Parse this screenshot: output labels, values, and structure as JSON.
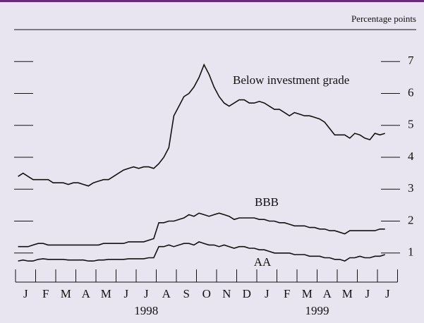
{
  "chart_data": {
    "type": "line",
    "unit_label": "Percentage points",
    "categories": [
      "J",
      null,
      null,
      null,
      "F",
      null,
      null,
      null,
      "M",
      null,
      null,
      null,
      "A",
      null,
      null,
      null,
      "M",
      null,
      null,
      null,
      "J",
      null,
      null,
      null,
      "J",
      null,
      null,
      null,
      "A",
      null,
      null,
      null,
      "S",
      null,
      null,
      null,
      "O",
      null,
      null,
      null,
      "N",
      null,
      null,
      null,
      "D",
      null,
      null,
      null,
      "J",
      null,
      null,
      null,
      "F",
      null,
      null,
      null,
      "M",
      null,
      null,
      null,
      "A",
      null,
      null,
      null,
      "M",
      null,
      null,
      null,
      "J",
      null,
      null,
      null,
      "J",
      null
    ],
    "years": [
      "1998",
      "1999"
    ],
    "series": [
      {
        "name": "Below investment grade",
        "color": "#111111",
        "values": [
          3.4,
          3.5,
          3.4,
          3.3,
          3.3,
          3.3,
          3.3,
          3.2,
          3.2,
          3.2,
          3.15,
          3.2,
          3.2,
          3.15,
          3.1,
          3.2,
          3.25,
          3.3,
          3.3,
          3.4,
          3.5,
          3.6,
          3.65,
          3.7,
          3.65,
          3.7,
          3.7,
          3.65,
          3.8,
          4.0,
          4.3,
          5.3,
          5.6,
          5.9,
          6.0,
          6.2,
          6.5,
          6.9,
          6.6,
          6.2,
          5.9,
          5.7,
          5.6,
          5.7,
          5.8,
          5.8,
          5.7,
          5.7,
          5.75,
          5.7,
          5.6,
          5.5,
          5.5,
          5.4,
          5.3,
          5.4,
          5.35,
          5.3,
          5.3,
          5.25,
          5.2,
          5.1,
          4.9,
          4.7,
          4.7,
          4.7,
          4.6,
          4.75,
          4.7,
          4.6,
          4.55,
          4.75,
          4.7,
          4.75
        ]
      },
      {
        "name": "BBB",
        "color": "#111111",
        "values": [
          1.2,
          1.2,
          1.2,
          1.25,
          1.3,
          1.3,
          1.25,
          1.25,
          1.25,
          1.25,
          1.25,
          1.25,
          1.25,
          1.25,
          1.25,
          1.25,
          1.25,
          1.3,
          1.3,
          1.3,
          1.3,
          1.3,
          1.35,
          1.35,
          1.35,
          1.35,
          1.4,
          1.45,
          1.95,
          1.95,
          2.0,
          2.0,
          2.05,
          2.1,
          2.2,
          2.15,
          2.25,
          2.2,
          2.15,
          2.2,
          2.25,
          2.2,
          2.15,
          2.05,
          2.1,
          2.1,
          2.1,
          2.1,
          2.05,
          2.05,
          2.0,
          2.0,
          1.95,
          1.95,
          1.9,
          1.85,
          1.85,
          1.85,
          1.8,
          1.8,
          1.75,
          1.75,
          1.7,
          1.7,
          1.65,
          1.6,
          1.7,
          1.7,
          1.7,
          1.7,
          1.7,
          1.7,
          1.75,
          1.75
        ]
      },
      {
        "name": "AA",
        "color": "#111111",
        "values": [
          0.75,
          0.78,
          0.75,
          0.75,
          0.8,
          0.82,
          0.8,
          0.8,
          0.8,
          0.8,
          0.78,
          0.78,
          0.78,
          0.78,
          0.75,
          0.75,
          0.78,
          0.78,
          0.8,
          0.8,
          0.8,
          0.8,
          0.82,
          0.82,
          0.82,
          0.82,
          0.85,
          0.85,
          1.2,
          1.2,
          1.25,
          1.2,
          1.25,
          1.3,
          1.3,
          1.25,
          1.35,
          1.3,
          1.25,
          1.25,
          1.2,
          1.25,
          1.2,
          1.15,
          1.2,
          1.2,
          1.15,
          1.15,
          1.1,
          1.1,
          1.05,
          1.0,
          1.0,
          1.0,
          1.0,
          0.95,
          0.95,
          0.95,
          0.9,
          0.9,
          0.9,
          0.85,
          0.85,
          0.8,
          0.8,
          0.75,
          0.85,
          0.85,
          0.9,
          0.85,
          0.85,
          0.9,
          0.9,
          0.95
        ]
      }
    ],
    "ylim": [
      0,
      8
    ],
    "yticks": [
      1,
      2,
      3,
      4,
      5,
      6,
      7
    ]
  }
}
